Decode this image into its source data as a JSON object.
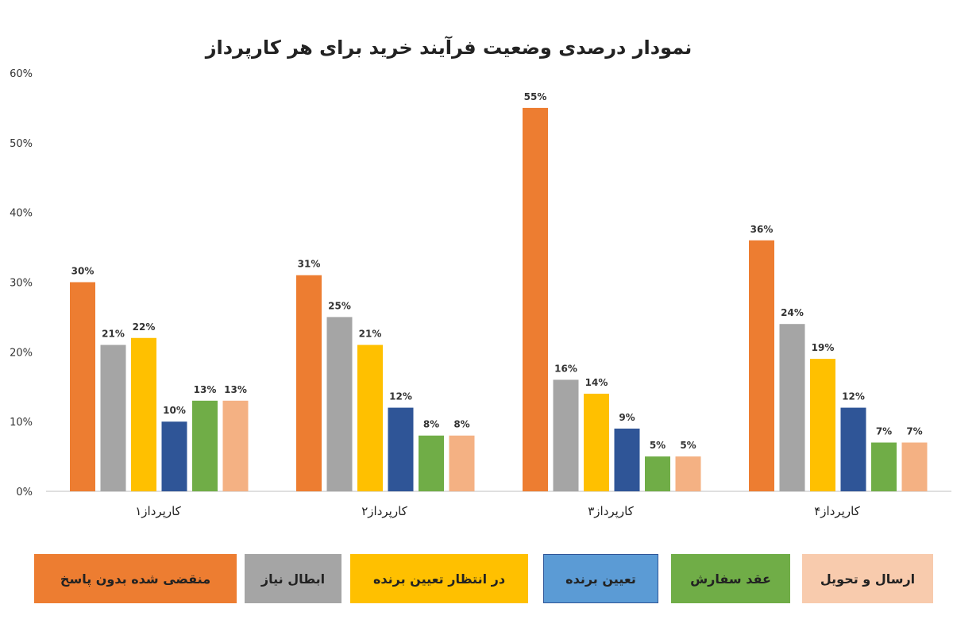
{
  "chart_data": {
    "type": "bar",
    "title": "نمودار درصدی وضعیت فرآیند خرید برای هر کارپرداز",
    "categories": [
      "کارپرداز۱",
      "کارپرداز۲",
      "کارپرداز۳",
      "کارپرداز۴"
    ],
    "ylim": [
      0,
      60
    ],
    "yticks": [
      "0%",
      "10%",
      "20%",
      "30%",
      "40%",
      "50%",
      "60%"
    ],
    "series": [
      {
        "name": "منقضی شده بدون پاسخ",
        "color": "#ED7D31",
        "values": [
          30,
          31,
          55,
          36
        ],
        "labels": [
          "30%",
          "31%",
          "55%",
          "36%"
        ]
      },
      {
        "name": "ابطال نیاز",
        "color": "#A5A5A5",
        "values": [
          21,
          25,
          16,
          24
        ],
        "labels": [
          "21%",
          "25%",
          "16%",
          "24%"
        ]
      },
      {
        "name": "در انتظار تعیین برنده",
        "color": "#FFC000",
        "values": [
          22,
          21,
          14,
          19
        ],
        "labels": [
          "22%",
          "21%",
          "14%",
          "19%"
        ]
      },
      {
        "name": "تعیین برنده",
        "color": "#2F5597",
        "values": [
          10,
          12,
          9,
          12
        ],
        "labels": [
          "10%",
          "12%",
          "9%",
          "12%"
        ]
      },
      {
        "name": "عقد سفارش",
        "color": "#70AD47",
        "values": [
          13,
          8,
          5,
          7
        ],
        "labels": [
          "13%",
          "8%",
          "5%",
          "7%"
        ]
      },
      {
        "name": "ارسال و تحویل",
        "color": "#F4B183",
        "values": [
          13,
          8,
          5,
          7
        ],
        "labels": [
          "13%",
          "8%",
          "5%",
          "7%"
        ]
      }
    ],
    "legend_colors": [
      "#ED7D31",
      "#A5A5A5",
      "#FFC000",
      "#5B9BD5",
      "#70AD47",
      "#F8CBAD"
    ],
    "grid": false,
    "legend_position": "bottom"
  }
}
